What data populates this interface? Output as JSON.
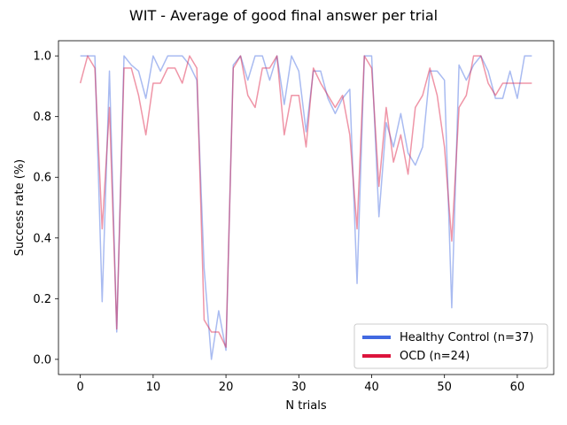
{
  "chart_data": {
    "type": "line",
    "title": "WIT - Average of good final answer per trial",
    "xlabel": "N trials",
    "ylabel": "Success rate (%)",
    "xlim": [
      -3,
      65
    ],
    "ylim": [
      -0.05,
      1.05
    ],
    "xticks": [
      "0",
      "10",
      "20",
      "30",
      "40",
      "50",
      "60"
    ],
    "xtick_values": [
      0,
      10,
      20,
      30,
      40,
      50,
      60
    ],
    "yticks": [
      "0.0",
      "0.2",
      "0.4",
      "0.6",
      "0.8",
      "1.0"
    ],
    "ytick_values": [
      0.0,
      0.2,
      0.4,
      0.6,
      0.8,
      1.0
    ],
    "grid": false,
    "legend_position": "lower-right",
    "series": [
      {
        "name": "Healthy Control (n=37)",
        "color": "#4169E1",
        "x": [
          0,
          1,
          2,
          3,
          4,
          5,
          6,
          7,
          8,
          9,
          10,
          11,
          12,
          13,
          14,
          15,
          16,
          17,
          18,
          19,
          20,
          21,
          22,
          23,
          24,
          25,
          26,
          27,
          28,
          29,
          30,
          31,
          32,
          33,
          34,
          35,
          36,
          37,
          38,
          39,
          40,
          41,
          42,
          43,
          44,
          45,
          46,
          47,
          48,
          49,
          50,
          51,
          52,
          53,
          54,
          55,
          56,
          57,
          58,
          59,
          60,
          61,
          62
        ],
        "values": [
          1.0,
          1.0,
          1.0,
          0.19,
          0.95,
          0.09,
          1.0,
          0.97,
          0.95,
          0.86,
          1.0,
          0.95,
          1.0,
          1.0,
          1.0,
          0.97,
          0.92,
          0.3,
          0.0,
          0.16,
          0.03,
          0.97,
          1.0,
          0.92,
          1.0,
          1.0,
          0.92,
          1.0,
          0.84,
          1.0,
          0.95,
          0.75,
          0.95,
          0.95,
          0.86,
          0.81,
          0.86,
          0.89,
          0.25,
          1.0,
          1.0,
          0.47,
          0.78,
          0.7,
          0.81,
          0.68,
          0.64,
          0.7,
          0.95,
          0.95,
          0.92,
          0.17,
          0.97,
          0.92,
          0.97,
          1.0,
          0.95,
          0.86,
          0.86,
          0.95,
          0.86,
          1.0,
          1.0
        ]
      },
      {
        "name": "OCD (n=24)",
        "color": "#DC143C",
        "x": [
          0,
          1,
          2,
          3,
          4,
          5,
          6,
          7,
          8,
          9,
          10,
          11,
          12,
          13,
          14,
          15,
          16,
          17,
          18,
          19,
          20,
          21,
          22,
          23,
          24,
          25,
          26,
          27,
          28,
          29,
          30,
          31,
          32,
          33,
          34,
          35,
          36,
          37,
          38,
          39,
          40,
          41,
          42,
          43,
          44,
          45,
          46,
          47,
          48,
          49,
          50,
          51,
          52,
          53,
          54,
          55,
          56,
          57,
          58,
          59,
          60,
          61,
          62
        ],
        "values": [
          0.91,
          1.0,
          0.96,
          0.43,
          0.83,
          0.1,
          0.96,
          0.96,
          0.87,
          0.74,
          0.91,
          0.91,
          0.96,
          0.96,
          0.91,
          1.0,
          0.96,
          0.13,
          0.09,
          0.09,
          0.04,
          0.96,
          1.0,
          0.87,
          0.83,
          0.96,
          0.96,
          1.0,
          0.74,
          0.87,
          0.87,
          0.7,
          0.96,
          0.91,
          0.87,
          0.83,
          0.87,
          0.74,
          0.43,
          1.0,
          0.96,
          0.57,
          0.83,
          0.65,
          0.74,
          0.61,
          0.83,
          0.87,
          0.96,
          0.87,
          0.7,
          0.39,
          0.83,
          0.87,
          1.0,
          1.0,
          0.91,
          0.87,
          0.91,
          0.91,
          0.91,
          0.91,
          0.91
        ]
      }
    ]
  }
}
